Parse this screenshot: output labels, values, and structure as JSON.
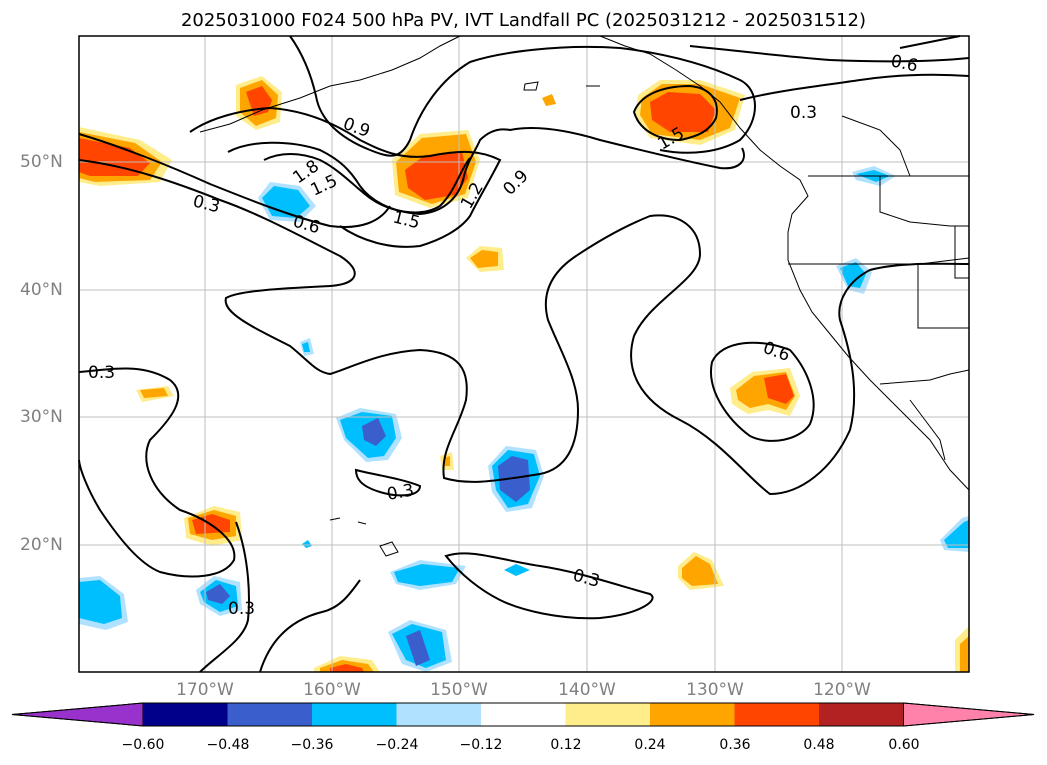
{
  "title": "2025031000 F024 500 hPa PV, IVT Landfall PC (2025031212 - 2025031512)",
  "lat_labels": [
    "50°N",
    "40°N",
    "30°N",
    "20°N"
  ],
  "lon_labels": [
    "170°W",
    "160°W",
    "150°W",
    "140°W",
    "130°W",
    "120°W"
  ],
  "contour_labels": [
    "0.3",
    "0.6",
    "0.9",
    "1.2",
    "1.5",
    "1.8"
  ],
  "colorbar": {
    "ticks": [
      "−0.60",
      "−0.48",
      "−0.36",
      "−0.24",
      "−0.12",
      "0.12",
      "0.24",
      "0.36",
      "0.48",
      "0.60"
    ],
    "colors": [
      "#9932cc",
      "#00008b",
      "#3a5fcd",
      "#00bfff",
      "#b0e2ff",
      "#ffffff",
      "#ffec8b",
      "#ffa500",
      "#ff4500",
      "#b22222",
      "#ff82ab"
    ]
  }
}
